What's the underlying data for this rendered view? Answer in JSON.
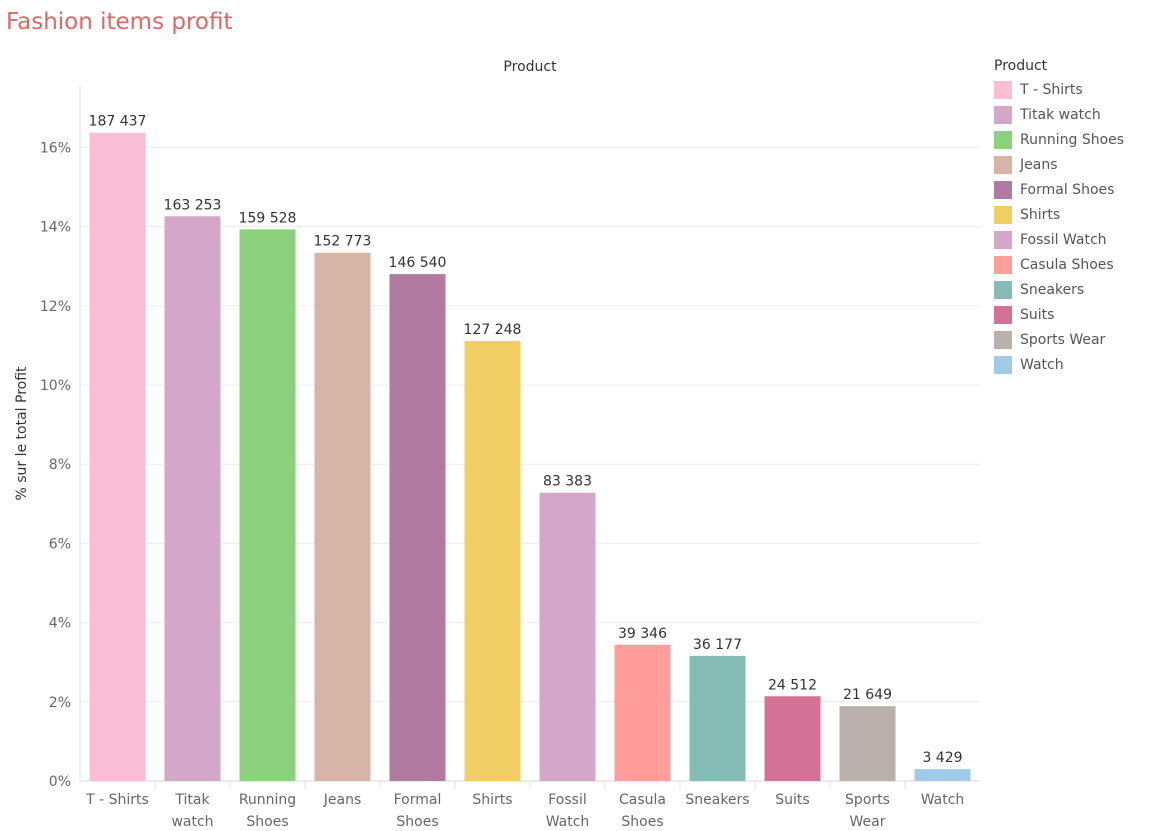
{
  "title": "Fashion items profit",
  "chart_data": {
    "type": "bar",
    "header": "Product",
    "ylabel": "% sur le total Profit",
    "ylim": [
      0,
      17.5
    ],
    "yticks": [
      0,
      2,
      4,
      6,
      8,
      10,
      12,
      14,
      16
    ],
    "ytick_labels": [
      "0%",
      "2%",
      "4%",
      "6%",
      "8%",
      "10%",
      "12%",
      "14%",
      "16%"
    ],
    "categories": [
      {
        "name": "T - Shirts",
        "lines": [
          "T - Shirts"
        ],
        "label": "187 437",
        "pct": 16.37,
        "color": "#f9bed3"
      },
      {
        "name": "Titak watch",
        "lines": [
          "Titak",
          "watch"
        ],
        "label": "163 253",
        "pct": 14.26,
        "color": "#d4a6c8"
      },
      {
        "name": "Running Shoes",
        "lines": [
          "Running",
          "Shoes"
        ],
        "label": "159 528",
        "pct": 13.93,
        "color": "#8cd17d"
      },
      {
        "name": "Jeans",
        "lines": [
          "Jeans"
        ],
        "label": "152 773",
        "pct": 13.34,
        "color": "#d7b5a6"
      },
      {
        "name": "Formal Shoes",
        "lines": [
          "Formal",
          "Shoes"
        ],
        "label": "146 540",
        "pct": 12.8,
        "color": "#b07aa1"
      },
      {
        "name": "Shirts",
        "lines": [
          "Shirts"
        ],
        "label": "127 248",
        "pct": 11.11,
        "color": "#f1ce63"
      },
      {
        "name": "Fossil Watch",
        "lines": [
          "Fossil",
          "Watch"
        ],
        "label": "83 383",
        "pct": 7.28,
        "color": "#d4a6c8"
      },
      {
        "name": "Casula Shoes",
        "lines": [
          "Casula",
          "Shoes"
        ],
        "label": "39 346",
        "pct": 3.44,
        "color": "#ff9d9a"
      },
      {
        "name": "Sneakers",
        "lines": [
          "Sneakers"
        ],
        "label": "36 177",
        "pct": 3.16,
        "color": "#86bcb6"
      },
      {
        "name": "Suits",
        "lines": [
          "Suits"
        ],
        "label": "24 512",
        "pct": 2.14,
        "color": "#d37295"
      },
      {
        "name": "Sports Wear",
        "lines": [
          "Sports",
          "Wear"
        ],
        "label": "21 649",
        "pct": 1.89,
        "color": "#bab0ac"
      },
      {
        "name": "Watch",
        "lines": [
          "Watch"
        ],
        "label": "3 429",
        "pct": 0.3,
        "color": "#a0cbe8"
      }
    ],
    "grid": true,
    "legend_position": "right"
  },
  "legend": {
    "title": "Product",
    "items": [
      {
        "label": "T - Shirts",
        "color": "#f9bed3"
      },
      {
        "label": "Titak watch",
        "color": "#d4a6c8"
      },
      {
        "label": "Running Shoes",
        "color": "#8cd17d"
      },
      {
        "label": "Jeans",
        "color": "#d7b5a6"
      },
      {
        "label": "Formal Shoes",
        "color": "#b07aa1"
      },
      {
        "label": "Shirts",
        "color": "#f1ce63"
      },
      {
        "label": "Fossil Watch",
        "color": "#d4a6c8"
      },
      {
        "label": "Casula Shoes",
        "color": "#ff9d9a"
      },
      {
        "label": "Sneakers",
        "color": "#86bcb6"
      },
      {
        "label": "Suits",
        "color": "#d37295"
      },
      {
        "label": "Sports Wear",
        "color": "#bab0ac"
      },
      {
        "label": "Watch",
        "color": "#a0cbe8"
      }
    ]
  }
}
